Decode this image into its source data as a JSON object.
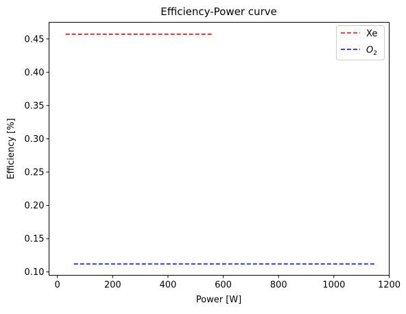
{
  "chart_data": {
    "type": "line",
    "title": "Efficiency-Power curve",
    "xlabel": "Power [W]",
    "ylabel": "Efficiency [%]",
    "xlim": [
      -30,
      1200
    ],
    "ylim": [
      0.095,
      0.475
    ],
    "xticks": [
      0,
      200,
      400,
      600,
      800,
      1000,
      1200
    ],
    "yticks": [
      0.1,
      0.15,
      0.2,
      0.25,
      0.3,
      0.35,
      0.4,
      0.45
    ],
    "xtick_labels": [
      "0",
      "200",
      "400",
      "600",
      "800",
      "1000",
      "1200"
    ],
    "ytick_labels": [
      "0.10",
      "0.15",
      "0.20",
      "0.25",
      "0.30",
      "0.35",
      "0.40",
      "0.45"
    ],
    "grid": false,
    "legend_position": "top-right",
    "series": [
      {
        "name": "Xe",
        "color": "#ff0000",
        "linestyle": "dashed",
        "x": [
          30,
          565
        ],
        "y": [
          0.457,
          0.457
        ]
      },
      {
        "name": "O2",
        "name_main": "O",
        "name_sub": "2",
        "color": "#0000ff",
        "linestyle": "dashed",
        "x": [
          60,
          1150
        ],
        "y": [
          0.112,
          0.112
        ]
      }
    ]
  }
}
